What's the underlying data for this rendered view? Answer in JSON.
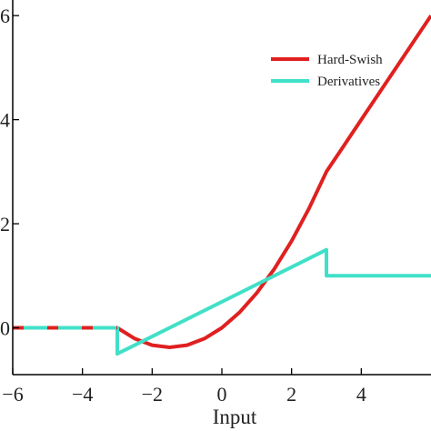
{
  "chart_data": {
    "type": "line",
    "title": "",
    "xlabel": "Input",
    "ylabel": "",
    "xlim": [
      -6,
      6
    ],
    "ylim": [
      -0.9,
      6.3
    ],
    "x_ticks": [
      -6,
      -4,
      -2,
      0,
      2,
      4
    ],
    "x_tick_labels": [
      "−6",
      "−4",
      "−2",
      "0",
      "2",
      "4"
    ],
    "y_ticks": [
      0,
      2,
      4,
      6
    ],
    "y_tick_labels": [
      "0",
      "2",
      "4",
      "6"
    ],
    "grid": false,
    "legend_position": "top-right",
    "series": [
      {
        "name": "Hard-Swish",
        "color": "#e02020",
        "x": [
          -6,
          -3,
          -2.5,
          -2,
          -1.5,
          -1,
          -0.5,
          0,
          0.5,
          1,
          1.5,
          2,
          2.5,
          3,
          3.5,
          4,
          4.5,
          5,
          5.5,
          6
        ],
        "y": [
          0,
          0,
          -0.208,
          -0.333,
          -0.375,
          -0.333,
          -0.208,
          0,
          0.292,
          0.667,
          1.125,
          1.667,
          2.292,
          3,
          3.5,
          4,
          4.5,
          5,
          5.5,
          6
        ]
      },
      {
        "name": "Derivatives",
        "color": "#40e0c8",
        "x": [
          -6,
          -3,
          -3,
          3,
          3,
          6
        ],
        "y": [
          0,
          0,
          -0.5,
          1.5,
          1,
          1
        ]
      }
    ]
  }
}
